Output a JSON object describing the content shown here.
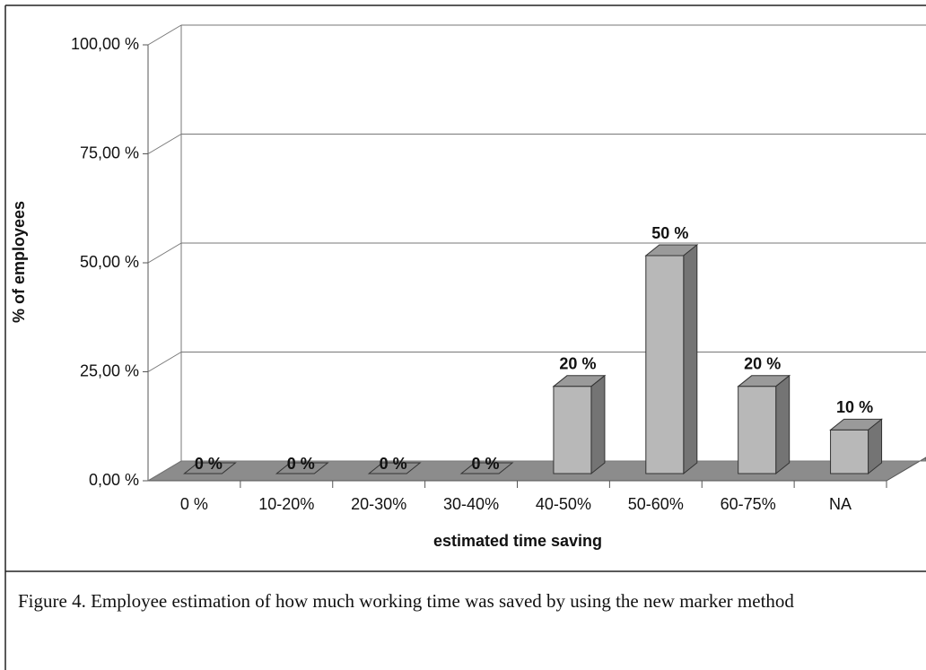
{
  "chart_data": {
    "type": "bar3d",
    "categories": [
      "0 %",
      "10-20%",
      "20-30%",
      "30-40%",
      "40-50%",
      "50-60%",
      "60-75%",
      "NA"
    ],
    "values": [
      0,
      0,
      0,
      0,
      20,
      50,
      20,
      10
    ],
    "value_labels": [
      "0 %",
      "0 %",
      "0 %",
      "0 %",
      "20 %",
      "50 %",
      "20 %",
      "10 %"
    ],
    "color": "#b8b8b8",
    "ylim": [
      0,
      100
    ],
    "yticks": [
      {
        "value": 0,
        "label": "0,00 %"
      },
      {
        "value": 25,
        "label": "25,00 %"
      },
      {
        "value": 50,
        "label": "50,00 %"
      },
      {
        "value": 75,
        "label": "75,00 %"
      },
      {
        "value": 100,
        "label": "100,00 %"
      }
    ],
    "grid": true,
    "x_label": "estimated time saving",
    "y_label": "% of employees"
  },
  "caption": "Figure 4. Employee estimation of how much working time was saved by using the new marker method"
}
